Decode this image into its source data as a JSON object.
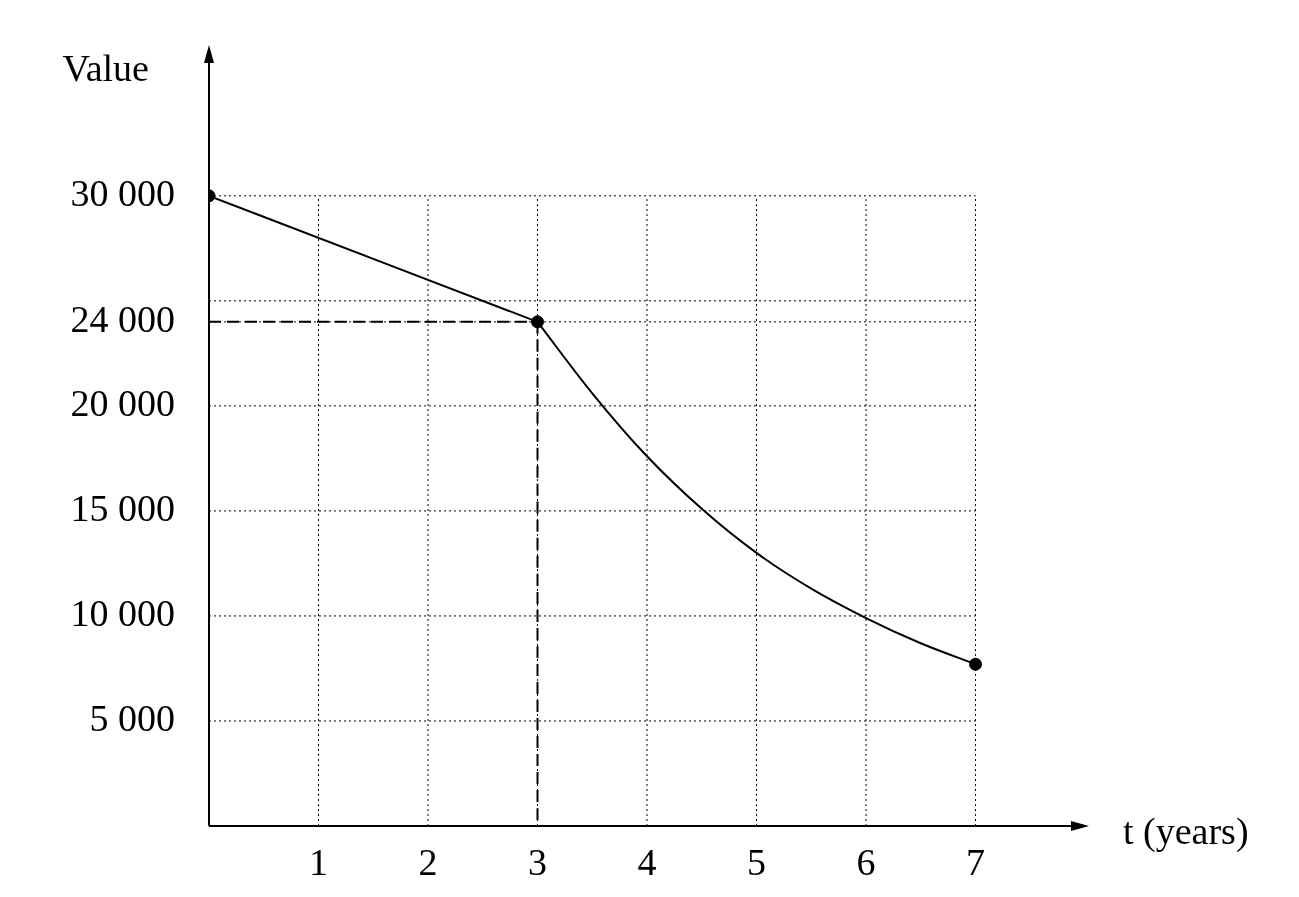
{
  "chart_data": {
    "type": "line",
    "xlabel": "t (years)",
    "ylabel": "Value",
    "xlim": [
      0,
      8
    ],
    "ylim": [
      0,
      37000
    ],
    "xticks": [
      1,
      2,
      3,
      4,
      5,
      6,
      7
    ],
    "yticks": [
      {
        "value": 5000,
        "label": "5 000"
      },
      {
        "value": 10000,
        "label": "10 000"
      },
      {
        "value": 15000,
        "label": "15 000"
      },
      {
        "value": 20000,
        "label": "20 000"
      },
      {
        "value": 24000,
        "label": "24 000"
      },
      {
        "value": 25000,
        "label": null
      },
      {
        "value": 30000,
        "label": "30 000"
      }
    ],
    "grid": true,
    "series": [
      {
        "color": "#000000",
        "marker": "none",
        "line_style": "solid",
        "x": [
          0,
          3
        ],
        "values": [
          30000,
          24000
        ]
      },
      {
        "color": "#000000",
        "marker": "none",
        "line_style": "solid",
        "x": [
          3,
          3.5,
          4,
          4.5,
          5,
          5.5,
          6,
          6.5,
          7
        ],
        "values": [
          24000,
          20600,
          17600,
          15100,
          13000,
          11300,
          9900,
          8700,
          7700
        ]
      },
      {
        "color": "#000000",
        "marker": "none",
        "line_style": "dashed",
        "x": [
          0,
          3
        ],
        "values": [
          24000,
          24000
        ]
      },
      {
        "color": "#000000",
        "marker": "none",
        "line_style": "dashed",
        "x": [
          3,
          3
        ],
        "values": [
          24000,
          0
        ]
      },
      {
        "type": "scatter",
        "color": "#000000",
        "marker": "circle",
        "x": [
          0,
          3,
          7
        ],
        "values": [
          30000,
          24000,
          7700
        ]
      }
    ]
  }
}
